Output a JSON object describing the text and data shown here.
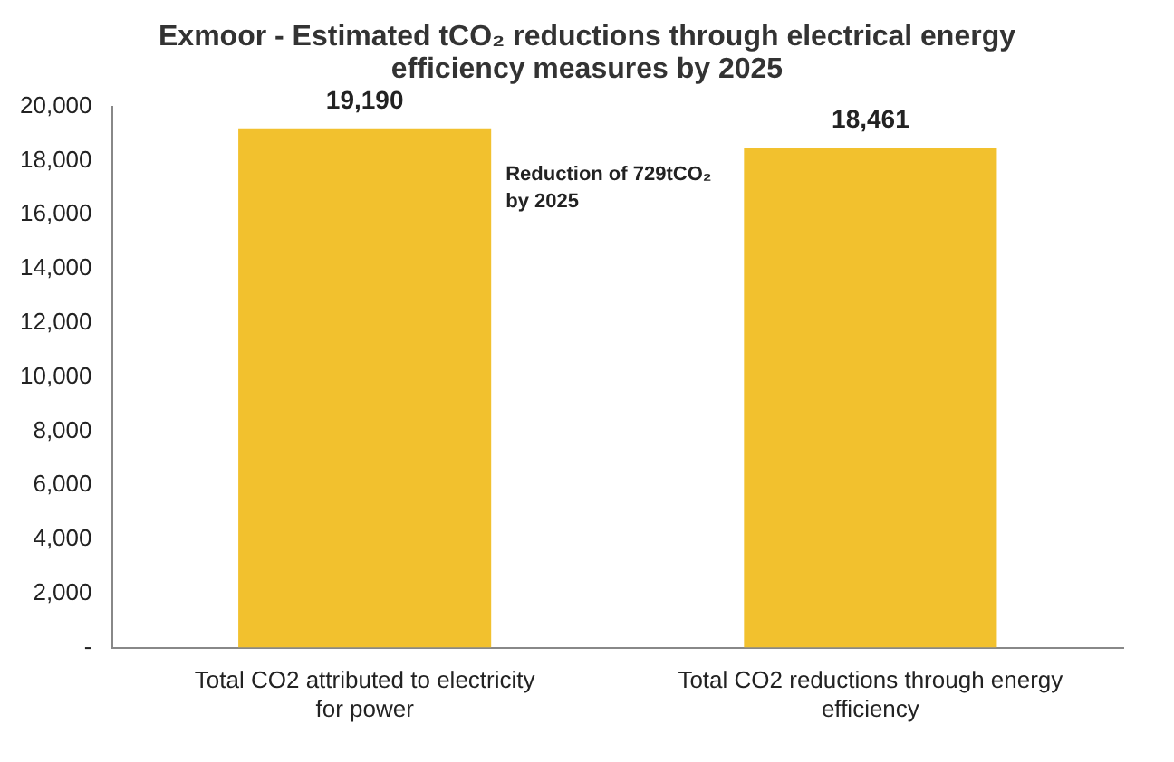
{
  "chart_data": {
    "type": "bar",
    "title": "Exmoor - Estimated tCO₂ reductions through electrical energy efficiency measures by 2025",
    "categories": [
      "Total CO2 attributed to electricity for power",
      "Total CO2 reductions through energy efficiency"
    ],
    "values": [
      19190,
      18461
    ],
    "color": "#f2c12e",
    "ylim": [
      0,
      20000
    ],
    "yticks": [
      {
        "value": 0,
        "label": "-"
      },
      {
        "value": 2000,
        "label": "2,000"
      },
      {
        "value": 4000,
        "label": "4,000"
      },
      {
        "value": 6000,
        "label": "6,000"
      },
      {
        "value": 8000,
        "label": "8,000"
      },
      {
        "value": 10000,
        "label": "10,000"
      },
      {
        "value": 12000,
        "label": "12,000"
      },
      {
        "value": 14000,
        "label": "14,000"
      },
      {
        "value": 16000,
        "label": "16,000"
      },
      {
        "value": 18000,
        "label": "18,000"
      },
      {
        "value": 20000,
        "label": "20,000"
      }
    ],
    "value_labels": [
      "19,190",
      "18,461"
    ],
    "annotations": [
      "Reduction of 729tCO₂ by 2025"
    ],
    "grid": false,
    "legend": false
  }
}
